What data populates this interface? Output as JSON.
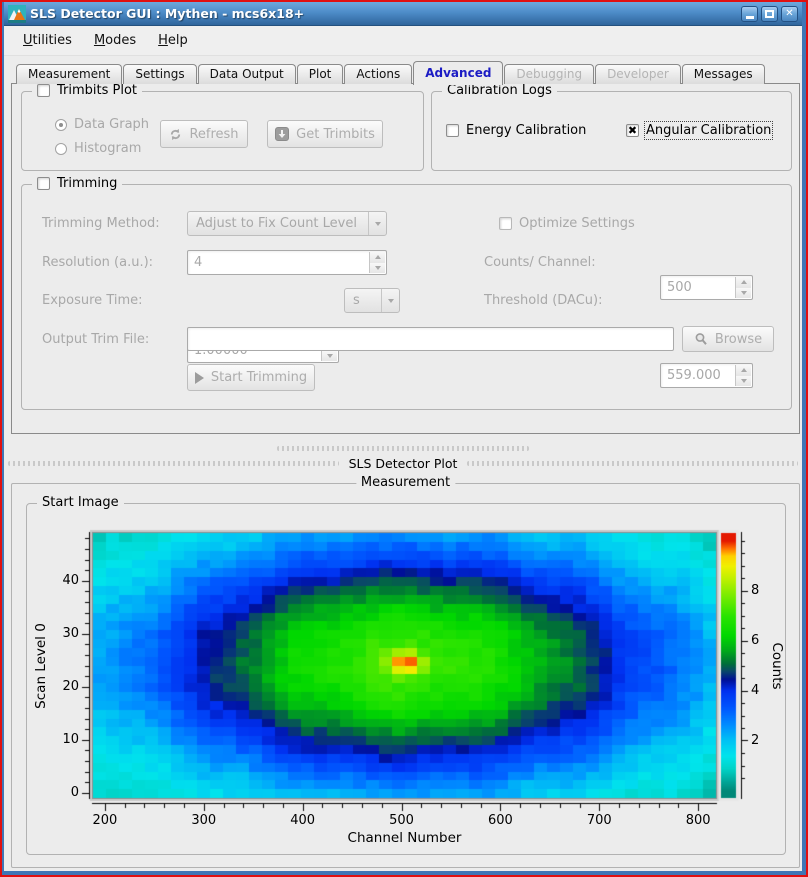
{
  "window": {
    "title": "SLS Detector GUI : Mythen - mcs6x18+"
  },
  "icons": {
    "check_x": "✖",
    "close_x": "✕"
  },
  "menubar": {
    "items": [
      {
        "label": "Utilities",
        "accel": 0
      },
      {
        "label": "Modes",
        "accel": 0
      },
      {
        "label": "Help",
        "accel": 0
      }
    ]
  },
  "tabs": [
    {
      "label": "Measurement",
      "state": "normal"
    },
    {
      "label": "Settings",
      "state": "normal"
    },
    {
      "label": "Data Output",
      "state": "normal"
    },
    {
      "label": "Plot",
      "state": "normal"
    },
    {
      "label": "Actions",
      "state": "normal"
    },
    {
      "label": "Advanced",
      "state": "active"
    },
    {
      "label": "Debugging",
      "state": "disabled"
    },
    {
      "label": "Developer",
      "state": "disabled"
    },
    {
      "label": "Messages",
      "state": "normal"
    }
  ],
  "trimbits": {
    "title": "Trimbits Plot",
    "checked": false,
    "data_graph_label": "Data Graph",
    "histogram_label": "Histogram",
    "refresh_label": "Refresh",
    "get_trimbits_label": "Get Trimbits"
  },
  "calibration": {
    "title": "Calibration Logs",
    "energy_label": "Energy Calibration",
    "energy_checked": false,
    "angular_label": "Angular Calibration",
    "angular_checked": true
  },
  "trimming": {
    "title": "Trimming",
    "checked": false,
    "method_label": "Trimming Method:",
    "method_value": "Adjust to Fix Count Level",
    "optimize_label": "Optimize Settings",
    "resolution_label": "Resolution (a.u.):",
    "resolution_value": "4",
    "counts_label": "Counts/ Channel:",
    "counts_value": "500",
    "exposure_label": "Exposure Time:",
    "exposure_value": "1.00000",
    "exposure_unit": "s",
    "threshold_label": "Threshold (DACu):",
    "threshold_value": "559.000",
    "output_label": "Output Trim File:",
    "output_value": "",
    "browse_label": "Browse",
    "start_label": "Start Trimming"
  },
  "plot_section": {
    "splitter_label": "SLS Detector Plot",
    "group_title": "Measurement",
    "inner_title": "Start Image"
  },
  "chart_data": {
    "type": "heatmap",
    "title": "Start Image",
    "xlabel": "Channel Number",
    "ylabel": "Scan Level 0",
    "colorbar_label": "Counts",
    "x_range": [
      188,
      818
    ],
    "y_range": [
      -1,
      49
    ],
    "z_range": [
      0,
      10
    ],
    "colorbar_range": [
      -0.3,
      10.3
    ],
    "x_ticks": [
      200,
      300,
      400,
      500,
      600,
      700,
      800
    ],
    "x_minor_step": 20,
    "y_ticks": [
      0,
      10,
      20,
      30,
      40
    ],
    "y_minor_step": 2,
    "colorbar_ticks": [
      2,
      4,
      6,
      8
    ],
    "colorbar_minor_step": 0.5,
    "grid": {
      "cols": 48,
      "rows": 30
    },
    "model": {
      "center_x": 505,
      "center_y": 24.5,
      "sigma_x": 318,
      "sigma_y": 26.5,
      "falloff": 1.25,
      "base_amplitude": 7.3,
      "spike_amplitude": 3.2,
      "spike_sigma_x": 16,
      "spike_sigma_y": 1.9,
      "noise": 0.22,
      "clamp_min": 0.05,
      "clamp_max": 9.75
    },
    "colormap": [
      [
        0.0,
        "#008878"
      ],
      [
        0.04,
        "#00a89a"
      ],
      [
        0.09,
        "#00d4c8"
      ],
      [
        0.14,
        "#00e4ec"
      ],
      [
        0.2,
        "#00c4f4"
      ],
      [
        0.26,
        "#0090ff"
      ],
      [
        0.33,
        "#0058ff"
      ],
      [
        0.4,
        "#0030f0"
      ],
      [
        0.445,
        "#000f96"
      ],
      [
        0.48,
        "#0a4868"
      ],
      [
        0.51,
        "#007038"
      ],
      [
        0.56,
        "#00a81c"
      ],
      [
        0.62,
        "#00d800"
      ],
      [
        0.7,
        "#2ae400"
      ],
      [
        0.78,
        "#78ec00"
      ],
      [
        0.85,
        "#c0f000"
      ],
      [
        0.9,
        "#f0f000"
      ],
      [
        0.94,
        "#ffd000"
      ],
      [
        0.97,
        "#ff7000"
      ],
      [
        1.0,
        "#e41800"
      ]
    ]
  }
}
